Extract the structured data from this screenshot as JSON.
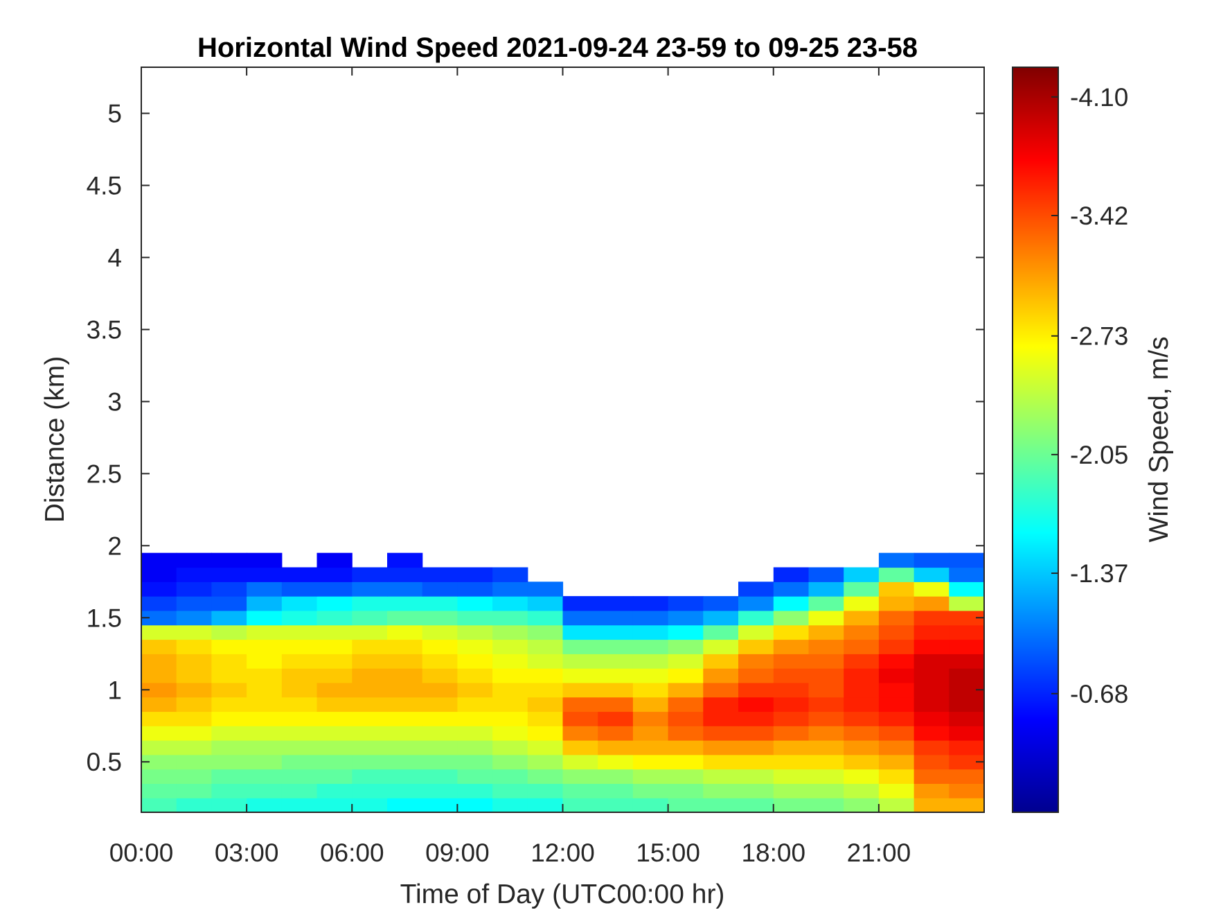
{
  "chart_data": {
    "type": "heatmap",
    "title": "Horizontal Wind Speed 2021-09-24 23-59 to 09-25 23-58",
    "xlabel": "Time of Day (UTC00:00 hr)",
    "ylabel": "Distance (km)",
    "colorbar_label": "Wind Speed, m/s",
    "colormap": "jet",
    "x_range_hours": [
      0,
      24
    ],
    "xticks": [
      {
        "value": 0,
        "label": "00:00"
      },
      {
        "value": 3,
        "label": "03:00"
      },
      {
        "value": 6,
        "label": "06:00"
      },
      {
        "value": 9,
        "label": "09:00"
      },
      {
        "value": 12,
        "label": "12:00"
      },
      {
        "value": 15,
        "label": "15:00"
      },
      {
        "value": 18,
        "label": "18:00"
      },
      {
        "value": 21,
        "label": "21:00"
      }
    ],
    "ylim": [
      0.15,
      5.32
    ],
    "yticks": [
      {
        "value": 0.5,
        "label": "0.5"
      },
      {
        "value": 1,
        "label": "1"
      },
      {
        "value": 1.5,
        "label": "1.5"
      },
      {
        "value": 2,
        "label": "2"
      },
      {
        "value": 2.5,
        "label": "2.5"
      },
      {
        "value": 3,
        "label": "3"
      },
      {
        "value": 3.5,
        "label": "3.5"
      },
      {
        "value": 4,
        "label": "4"
      },
      {
        "value": 4.5,
        "label": "4.5"
      },
      {
        "value": 5,
        "label": "5"
      }
    ],
    "colorbar_range": [
      -0.0,
      -4.27
    ],
    "colorbar_ticks": [
      {
        "value": -4.1,
        "label": "-4.10"
      },
      {
        "value": -3.42,
        "label": "-3.42"
      },
      {
        "value": -2.73,
        "label": "-2.73"
      },
      {
        "value": -2.05,
        "label": "-2.05"
      },
      {
        "value": -1.37,
        "label": "-1.37"
      },
      {
        "value": -0.68,
        "label": "-0.68"
      }
    ],
    "grid": false,
    "heatmap": {
      "time_hours": [
        0.5,
        1.5,
        2.5,
        3.5,
        4.5,
        5.5,
        6.5,
        7.5,
        8.5,
        9.5,
        10.5,
        11.5,
        12.5,
        13.5,
        14.5,
        15.5,
        16.5,
        17.5,
        18.5,
        19.5,
        20.5,
        21.5,
        22.5,
        23.5
      ],
      "distance_km": [
        0.2,
        0.3,
        0.4,
        0.5,
        0.6,
        0.7,
        0.8,
        0.9,
        1.0,
        1.1,
        1.2,
        1.3,
        1.4,
        1.5,
        1.6,
        1.7,
        1.8,
        1.9
      ],
      "rows": [
        [
          -1.9,
          -1.8,
          -1.8,
          -1.7,
          -1.7,
          -1.7,
          -1.7,
          -1.6,
          -1.6,
          -1.6,
          -1.7,
          -1.7,
          -1.9,
          -1.9,
          -1.9,
          -2.0,
          -2.0,
          -2.0,
          -2.1,
          -2.1,
          -2.2,
          -2.4,
          -3.0,
          -3.0
        ],
        [
          -2.0,
          -2.0,
          -1.9,
          -1.9,
          -1.9,
          -1.8,
          -1.8,
          -1.8,
          -1.8,
          -1.8,
          -1.9,
          -1.9,
          -2.0,
          -2.0,
          -2.1,
          -2.1,
          -2.2,
          -2.2,
          -2.3,
          -2.3,
          -2.4,
          -2.6,
          -3.1,
          -3.2
        ],
        [
          -2.1,
          -2.1,
          -2.0,
          -2.0,
          -2.0,
          -2.0,
          -1.9,
          -1.9,
          -1.9,
          -2.0,
          -2.0,
          -2.1,
          -2.2,
          -2.2,
          -2.3,
          -2.3,
          -2.4,
          -2.4,
          -2.5,
          -2.5,
          -2.6,
          -2.8,
          -3.3,
          -3.3
        ],
        [
          -2.2,
          -2.2,
          -2.2,
          -2.2,
          -2.1,
          -2.1,
          -2.1,
          -2.1,
          -2.1,
          -2.1,
          -2.2,
          -2.3,
          -2.5,
          -2.6,
          -2.7,
          -2.7,
          -2.8,
          -2.8,
          -2.8,
          -2.8,
          -2.9,
          -3.0,
          -3.4,
          -3.5
        ],
        [
          -2.4,
          -2.4,
          -2.3,
          -2.3,
          -2.3,
          -2.3,
          -2.3,
          -2.3,
          -2.3,
          -2.3,
          -2.4,
          -2.5,
          -2.9,
          -3.0,
          -3.0,
          -3.0,
          -3.1,
          -3.1,
          -3.0,
          -3.0,
          -3.1,
          -3.2,
          -3.5,
          -3.6
        ],
        [
          -2.6,
          -2.6,
          -2.5,
          -2.5,
          -2.5,
          -2.5,
          -2.5,
          -2.5,
          -2.5,
          -2.5,
          -2.6,
          -2.7,
          -3.2,
          -3.3,
          -3.1,
          -3.3,
          -3.4,
          -3.4,
          -3.3,
          -3.2,
          -3.3,
          -3.4,
          -3.7,
          -3.8
        ],
        [
          -2.8,
          -2.8,
          -2.7,
          -2.7,
          -2.7,
          -2.7,
          -2.7,
          -2.7,
          -2.7,
          -2.7,
          -2.7,
          -2.8,
          -3.4,
          -3.5,
          -3.2,
          -3.4,
          -3.6,
          -3.6,
          -3.5,
          -3.4,
          -3.5,
          -3.6,
          -3.8,
          -3.9
        ],
        [
          -3.0,
          -2.9,
          -2.8,
          -2.8,
          -2.8,
          -2.9,
          -2.9,
          -2.9,
          -2.9,
          -2.8,
          -2.8,
          -2.9,
          -3.3,
          -3.3,
          -3.0,
          -3.3,
          -3.6,
          -3.7,
          -3.6,
          -3.5,
          -3.6,
          -3.7,
          -3.9,
          -4.0
        ],
        [
          -3.1,
          -3.0,
          -2.9,
          -2.8,
          -2.9,
          -3.0,
          -3.0,
          -3.0,
          -3.0,
          -2.9,
          -2.8,
          -2.8,
          -2.9,
          -2.9,
          -2.8,
          -3.0,
          -3.3,
          -3.5,
          -3.5,
          -3.4,
          -3.6,
          -3.7,
          -3.9,
          -4.0
        ],
        [
          -3.0,
          -2.9,
          -2.8,
          -2.8,
          -2.9,
          -2.9,
          -3.0,
          -3.0,
          -2.9,
          -2.8,
          -2.7,
          -2.7,
          -2.6,
          -2.6,
          -2.6,
          -2.7,
          -3.1,
          -3.3,
          -3.4,
          -3.4,
          -3.6,
          -3.8,
          -3.9,
          -4.0
        ],
        [
          -3.0,
          -2.9,
          -2.8,
          -2.7,
          -2.8,
          -2.8,
          -2.9,
          -2.9,
          -2.8,
          -2.7,
          -2.6,
          -2.5,
          -2.4,
          -2.4,
          -2.4,
          -2.5,
          -2.9,
          -3.2,
          -3.3,
          -3.3,
          -3.5,
          -3.7,
          -3.9,
          -3.9
        ],
        [
          -2.9,
          -2.8,
          -2.7,
          -2.7,
          -2.7,
          -2.7,
          -2.8,
          -2.8,
          -2.7,
          -2.6,
          -2.5,
          -2.4,
          -2.1,
          -2.1,
          -2.1,
          -2.2,
          -2.5,
          -2.9,
          -3.1,
          -3.2,
          -3.3,
          -3.5,
          -3.7,
          -3.7
        ],
        [
          -2.5,
          -2.5,
          -2.4,
          -2.5,
          -2.5,
          -2.5,
          -2.5,
          -2.6,
          -2.5,
          -2.4,
          -2.3,
          -2.2,
          -1.5,
          -1.5,
          -1.5,
          -1.6,
          -2.0,
          -2.5,
          -2.8,
          -3.0,
          -3.2,
          -3.4,
          -3.6,
          -3.6
        ],
        [
          -1.0,
          -1.1,
          -1.3,
          -1.6,
          -1.7,
          -1.8,
          -1.9,
          -2.0,
          -2.0,
          -1.9,
          -1.9,
          -1.8,
          -1.0,
          -1.0,
          -1.0,
          -1.1,
          -1.3,
          -1.8,
          -2.2,
          -2.6,
          -3.0,
          -3.3,
          -3.5,
          -3.5
        ],
        [
          -0.8,
          -0.9,
          -0.9,
          -1.3,
          -1.5,
          -1.6,
          -1.7,
          -1.7,
          -1.7,
          -1.6,
          -1.5,
          -1.4,
          -0.7,
          -0.7,
          -0.7,
          -0.8,
          -0.9,
          -1.1,
          -1.6,
          -2.0,
          -2.6,
          -3.0,
          -3.1,
          -2.4
        ],
        [
          -0.6,
          -0.7,
          -0.8,
          -1.0,
          -0.9,
          -0.9,
          -1.0,
          -1.0,
          -0.9,
          -0.9,
          -1.0,
          -1.0,
          null,
          null,
          null,
          null,
          null,
          -0.8,
          -1.0,
          -1.3,
          -2.0,
          -2.9,
          -2.6,
          -1.6
        ],
        [
          -0.5,
          -0.6,
          -0.6,
          -0.6,
          -0.6,
          -0.6,
          -0.7,
          -0.7,
          -0.7,
          -0.7,
          -0.8,
          null,
          null,
          null,
          null,
          null,
          null,
          null,
          -0.7,
          -0.9,
          -1.4,
          -2.0,
          -1.4,
          -1.0
        ],
        [
          -0.5,
          -0.5,
          -0.5,
          -0.5,
          null,
          -0.5,
          null,
          -0.6,
          null,
          null,
          null,
          null,
          null,
          null,
          null,
          null,
          null,
          null,
          null,
          null,
          null,
          -1.0,
          -0.9,
          -0.9
        ]
      ]
    }
  }
}
